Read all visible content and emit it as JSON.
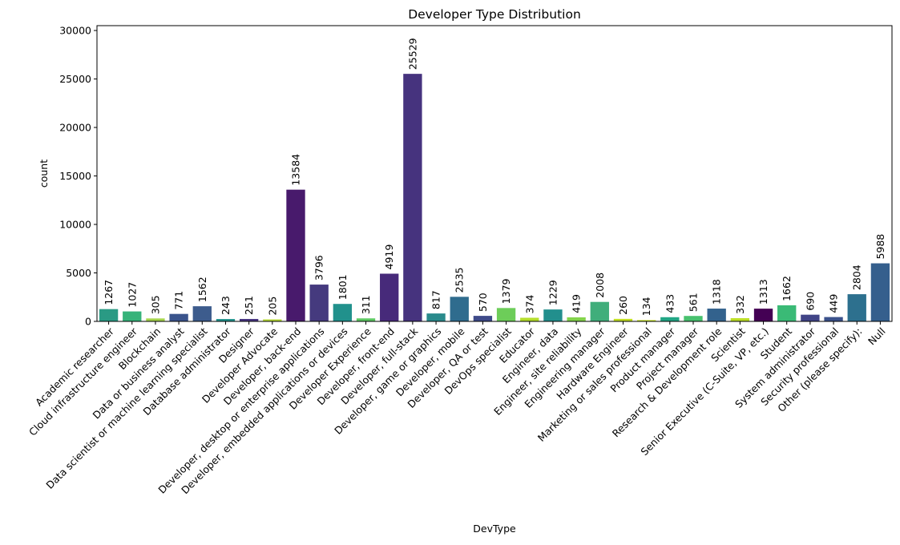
{
  "chart_data": {
    "type": "bar",
    "title": "Developer Type Distribution",
    "xlabel": "DevType",
    "ylabel": "count",
    "ylim": [
      0,
      30500
    ],
    "yticks": [
      0,
      5000,
      10000,
      15000,
      20000,
      25000,
      30000
    ],
    "grid": false,
    "legend": "none",
    "categories": [
      "Academic researcher",
      "Cloud infrastructure engineer",
      "Blockchain",
      "Data or business analyst",
      "Data scientist or machine learning specialist",
      "Database administrator",
      "Designer",
      "Developer Advocate",
      "Developer, back-end",
      "Developer, desktop or enterprise applications",
      "Developer, embedded applications or devices",
      "Developer Experience",
      "Developer, front-end",
      "Developer, full-stack",
      "Developer, game or graphics",
      "Developer, mobile",
      "Developer, QA or test",
      "DevOps specialist",
      "Educator",
      "Engineer, data",
      "Engineer, site reliability",
      "Engineering manager",
      "Hardware Engineer",
      "Marketing or sales professional",
      "Product manager",
      "Project manager",
      "Research & Development role",
      "Scientist",
      "Senior Executive (C-Suite, VP, etc.)",
      "Student",
      "System administrator",
      "Security professional",
      "Other (please specify):",
      "Null"
    ],
    "values": [
      1267,
      1027,
      305,
      771,
      1562,
      243,
      251,
      205,
      13584,
      3796,
      1801,
      311,
      4919,
      25529,
      817,
      2535,
      570,
      1379,
      374,
      1229,
      419,
      2008,
      260,
      134,
      433,
      561,
      1318,
      332,
      1313,
      1662,
      690,
      449,
      2804,
      5988
    ],
    "colors": [
      "#2a9a84",
      "#36b37a",
      "#a6d44c",
      "#3a548c",
      "#3d5c8d",
      "#21928c",
      "#463480",
      "#b5d735",
      "#481a6c",
      "#453a7e",
      "#21918c",
      "#5ec962",
      "#472a7a",
      "#46337e",
      "#2a8a8c",
      "#2f6c8e",
      "#3e4a89",
      "#6dcd59",
      "#b5de2b",
      "#228f8d",
      "#84d44b",
      "#40ae7b",
      "#c2df23",
      "#c5e021",
      "#21a685",
      "#48c16e",
      "#33628d",
      "#bddf26",
      "#440154",
      "#3aba76",
      "#414487",
      "#3b528b",
      "#2d708e",
      "#355f8d"
    ]
  }
}
